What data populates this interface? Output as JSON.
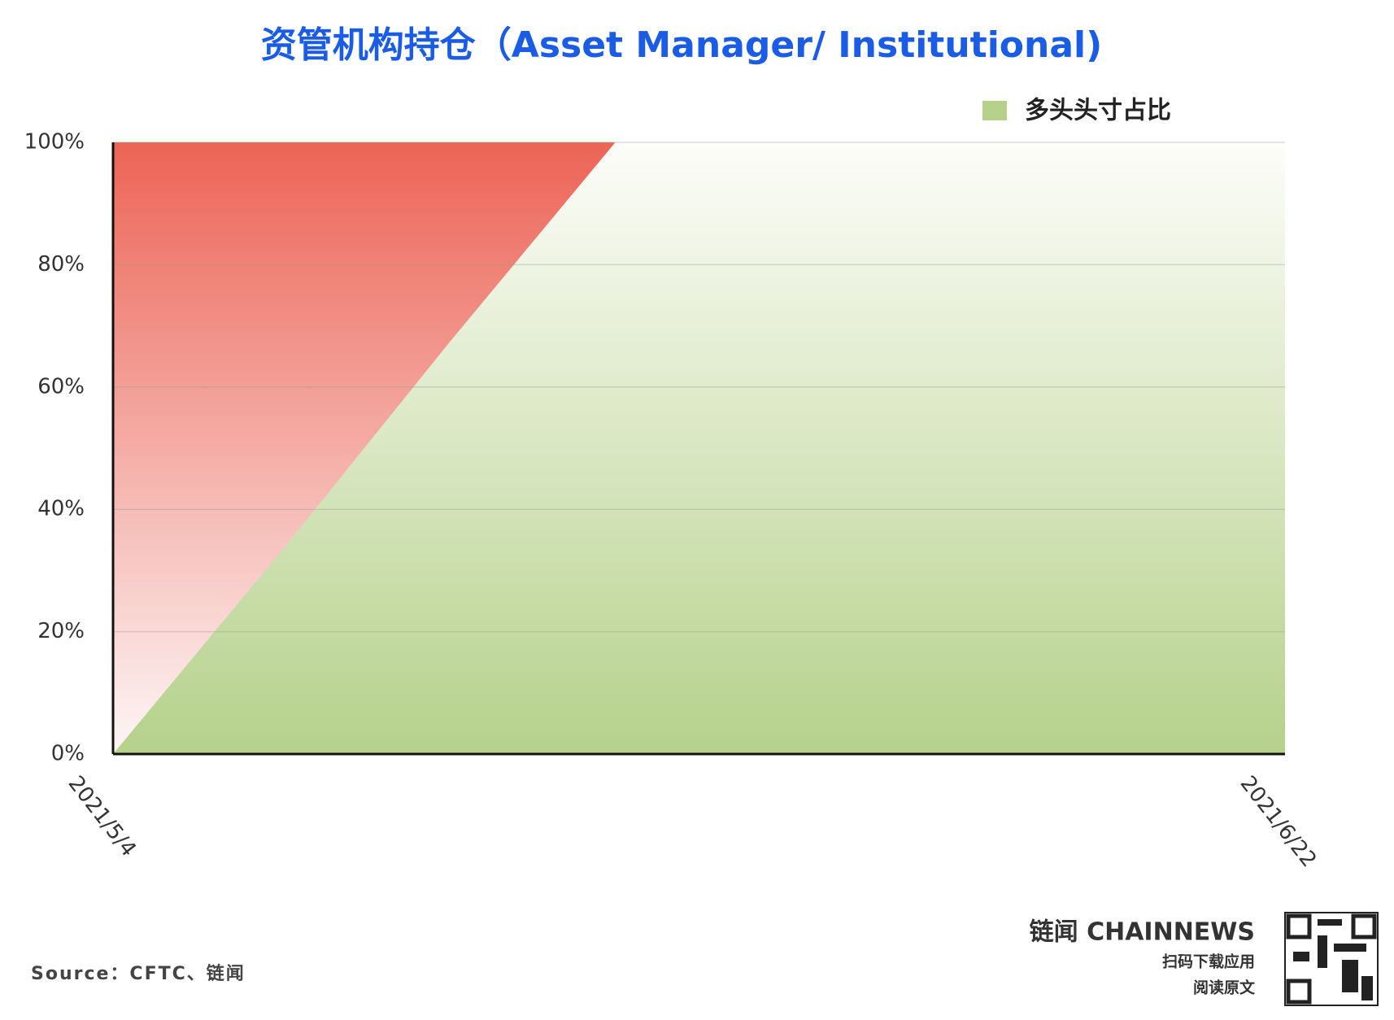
{
  "chart_data": {
    "type": "area",
    "title": "资管机构持仓（Asset Manager/ Institutional)",
    "categories": [
      "2021/5/4",
      null,
      null,
      null,
      null,
      null,
      null,
      "2021/6/22"
    ],
    "series": [
      {
        "name": "多头头寸占比",
        "color": "#b5d18b",
        "values": [
          0,
          33,
          67,
          100,
          100,
          100,
          100,
          100
        ]
      }
    ],
    "ylim": [
      0,
      100
    ],
    "yticks": [
      {
        "value": 0,
        "label": "0%"
      },
      {
        "value": 20,
        "label": "20%"
      },
      {
        "value": 40,
        "label": "40%"
      },
      {
        "value": 60,
        "label": "60%"
      },
      {
        "value": 80,
        "label": "80%"
      },
      {
        "value": 100,
        "label": "100%"
      }
    ],
    "grid": true,
    "legend": "top-right"
  },
  "footer": {
    "source": "Source：CFTC、链闻",
    "brand": "链闻 CHAINNEWS",
    "line1": "扫码下载应用",
    "line2": "阅读原文"
  }
}
